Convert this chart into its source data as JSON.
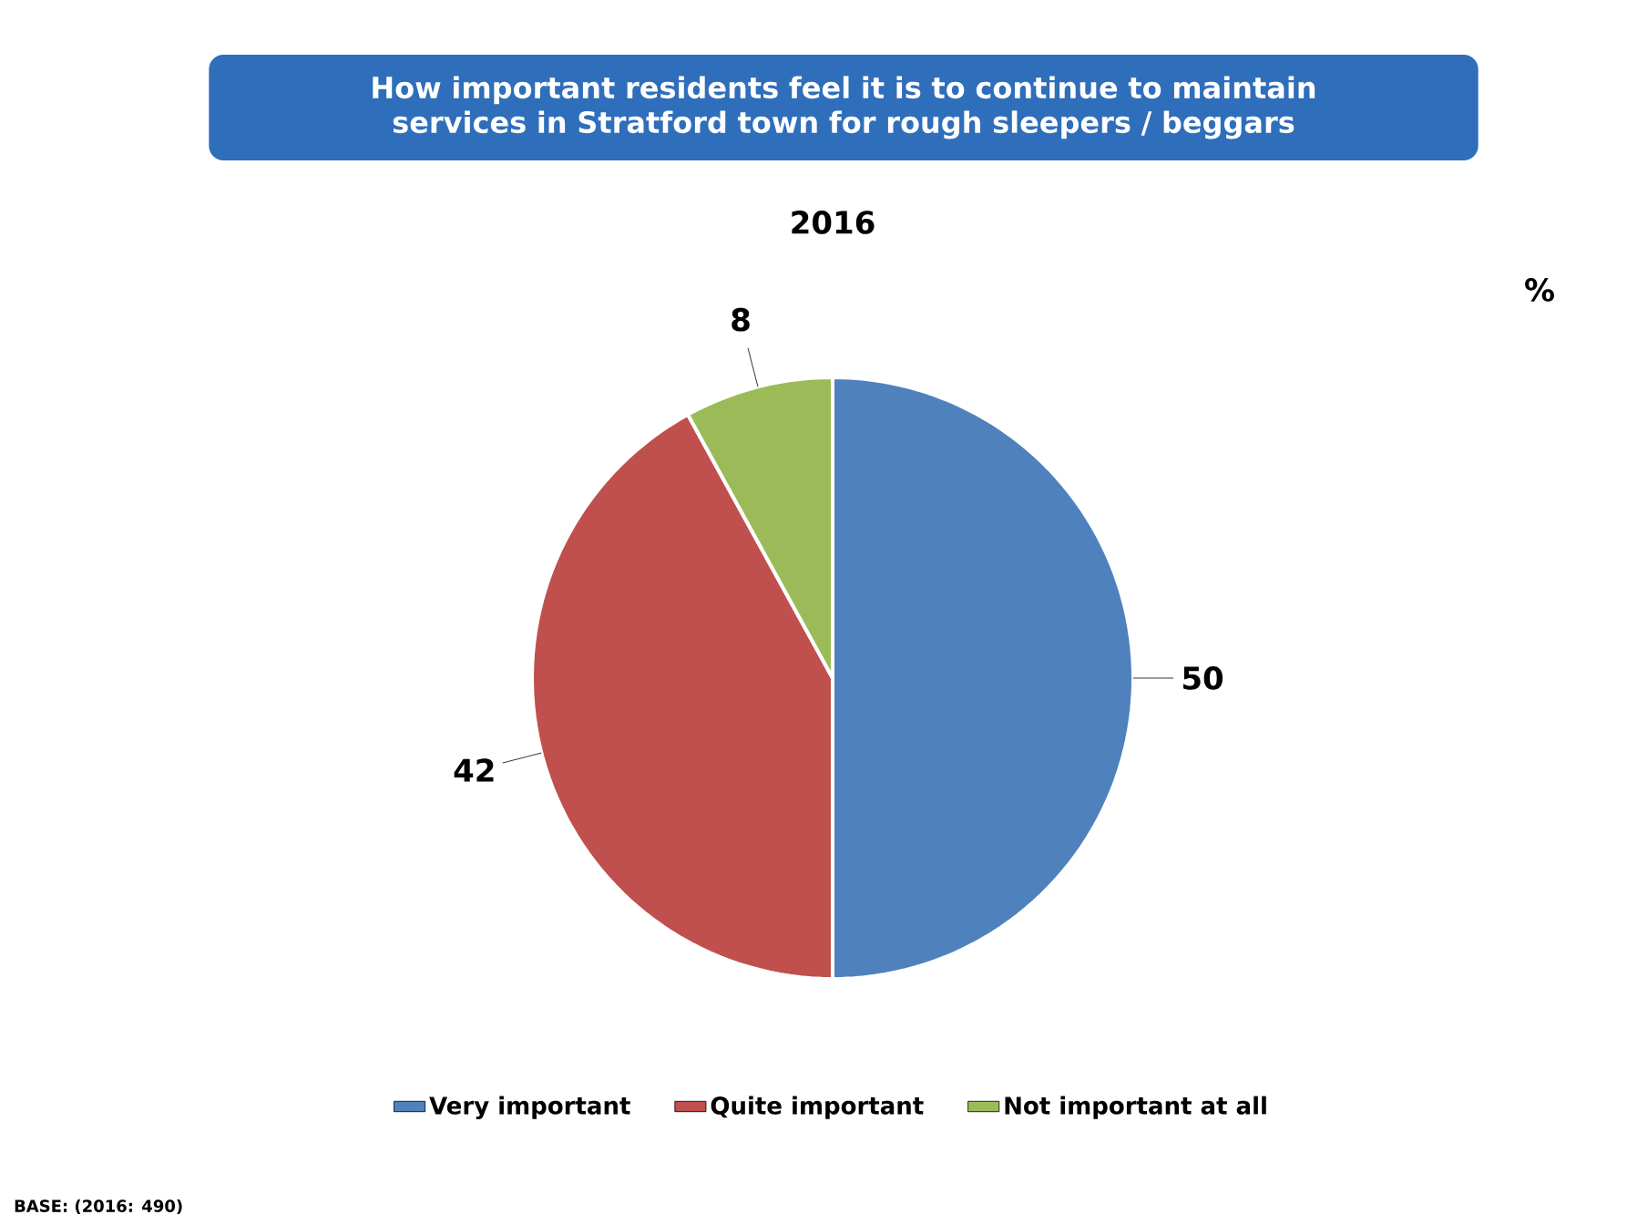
{
  "chart_data": {
    "type": "pie",
    "title": "How important residents feel it is to continue to maintain services in Stratford town for rough sleepers / beggars",
    "subtitle": "2016",
    "categories": [
      "Very important",
      "Quite important",
      "Not important at all"
    ],
    "values": [
      50,
      42,
      8
    ],
    "colors": [
      "#4f81bd",
      "#c0504d",
      "#9bbb59"
    ],
    "data_labels": true,
    "legend": "bottom",
    "annotations": [
      "%",
      "BASE: (2016: 490)"
    ]
  }
}
